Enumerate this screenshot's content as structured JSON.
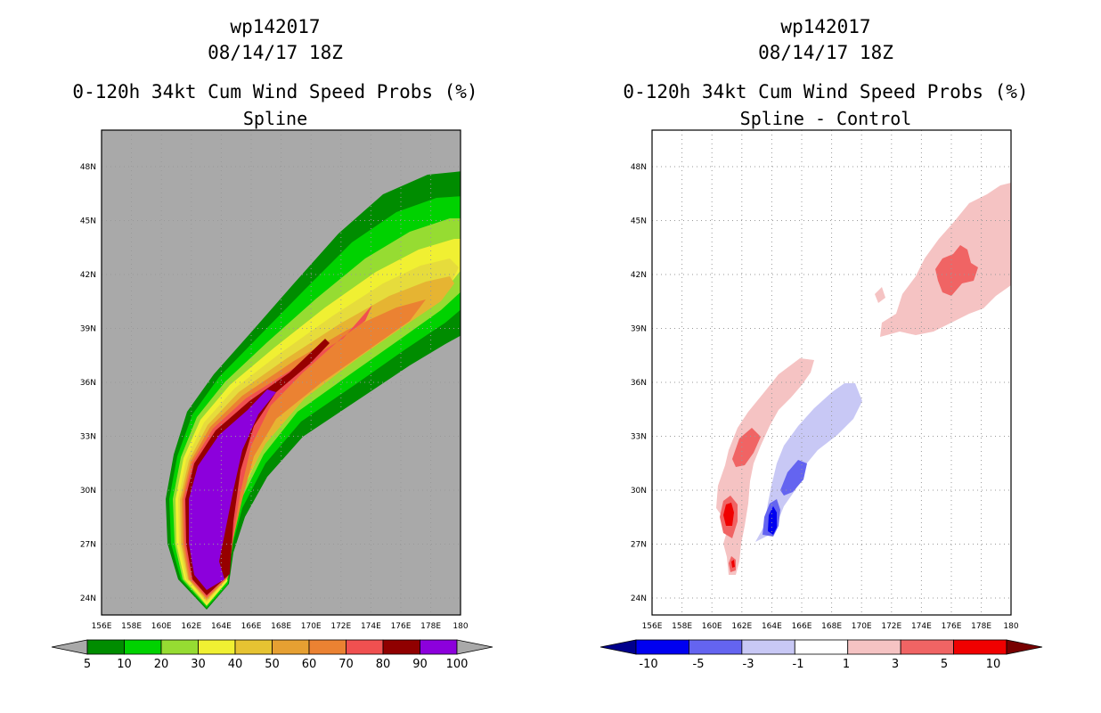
{
  "left": {
    "storm_id": "wp142017",
    "datetime": "08/14/17 18Z",
    "product": "0-120h 34kt Cum Wind Speed Probs (%)",
    "method": "Spline",
    "colorbar": {
      "labels": [
        "5",
        "10",
        "20",
        "30",
        "40",
        "50",
        "60",
        "70",
        "80",
        "90",
        "100"
      ],
      "colors": [
        "#a9a9a9",
        "#008c00",
        "#00d200",
        "#96dc32",
        "#f0f032",
        "#e6c332",
        "#e6a032",
        "#eb8232",
        "#f05050",
        "#900000",
        "#8c00dc",
        "#a9a9a9"
      ]
    }
  },
  "right": {
    "storm_id": "wp142017",
    "datetime": "08/14/17 18Z",
    "product": "0-120h 34kt Cum Wind Speed Probs (%)",
    "method": "Spline - Control",
    "colorbar": {
      "labels": [
        "-10",
        "-5",
        "-3",
        "-1",
        "1",
        "3",
        "5",
        "10"
      ],
      "colors": [
        "#00008c",
        "#0000f0",
        "#6464f0",
        "#c8c8f5",
        "#ffffff",
        "#f5c3c3",
        "#f06464",
        "#f00000",
        "#780000"
      ]
    }
  },
  "axes": {
    "lon_labels": [
      "156E",
      "158E",
      "160E",
      "162E",
      "164E",
      "166E",
      "168E",
      "170E",
      "172E",
      "174E",
      "176E",
      "178E",
      "180"
    ],
    "lat_labels": [
      "24N",
      "27N",
      "30N",
      "33N",
      "36N",
      "39N",
      "42N",
      "45N",
      "48N"
    ]
  }
}
